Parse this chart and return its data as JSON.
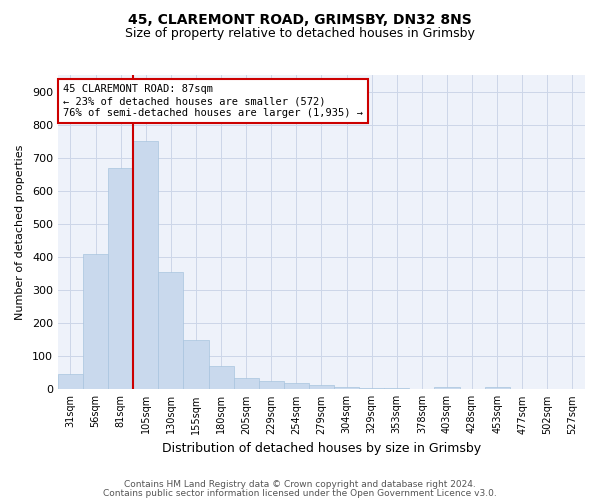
{
  "title1": "45, CLAREMONT ROAD, GRIMSBY, DN32 8NS",
  "title2": "Size of property relative to detached houses in Grimsby",
  "xlabel": "Distribution of detached houses by size in Grimsby",
  "ylabel": "Number of detached properties",
  "footer1": "Contains HM Land Registry data © Crown copyright and database right 2024.",
  "footer2": "Contains public sector information licensed under the Open Government Licence v3.0.",
  "bar_color": "#c9d9ed",
  "bar_edge_color": "#a8c4de",
  "grid_color": "#ccd6e8",
  "annotation_box_color": "#cc0000",
  "property_line_color": "#cc0000",
  "property_label": "45 CLAREMONT ROAD: 87sqm",
  "annotation_line1": "← 23% of detached houses are smaller (572)",
  "annotation_line2": "76% of semi-detached houses are larger (1,935) →",
  "categories": [
    "31sqm",
    "56sqm",
    "81sqm",
    "105sqm",
    "130sqm",
    "155sqm",
    "180sqm",
    "205sqm",
    "229sqm",
    "254sqm",
    "279sqm",
    "304sqm",
    "329sqm",
    "353sqm",
    "378sqm",
    "403sqm",
    "428sqm",
    "453sqm",
    "477sqm",
    "502sqm",
    "527sqm"
  ],
  "values": [
    45,
    410,
    670,
    750,
    355,
    150,
    70,
    35,
    25,
    18,
    12,
    8,
    5,
    3,
    2,
    8,
    2,
    8,
    2,
    1,
    1
  ],
  "ylim": [
    0,
    950
  ],
  "yticks": [
    0,
    100,
    200,
    300,
    400,
    500,
    600,
    700,
    800,
    900
  ],
  "property_bar_index": 2,
  "background_color": "#eef2fa"
}
